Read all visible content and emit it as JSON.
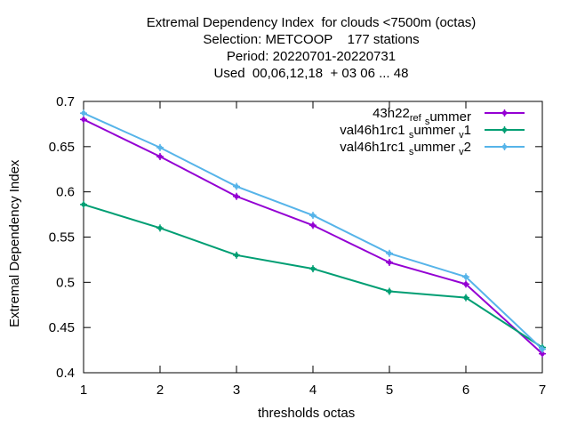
{
  "chart_data": {
    "type": "line",
    "title_lines": [
      "Extremal Dependency Index  for clouds <7500m (octas)",
      "Selection: METCOOP    177 stations",
      "Period: 20220701-20220731",
      "Used  00,06,12,18  + 03 06 ... 48"
    ],
    "xlabel": "thresholds octas",
    "ylabel": "Extremal Dependency Index",
    "x": [
      1,
      2,
      3,
      4,
      5,
      6,
      7
    ],
    "xlim": [
      1,
      7
    ],
    "ylim": [
      0.4,
      0.7
    ],
    "x_ticks": [
      "1",
      "2",
      "3",
      "4",
      "5",
      "6",
      "7"
    ],
    "y_ticks": [
      "0.4",
      "0.45",
      "0.5",
      "0.55",
      "0.6",
      "0.65",
      "0.7"
    ],
    "grid": false,
    "legend_position": "top-right",
    "series": [
      {
        "name": "43h22_ref_summer",
        "label_parts": [
          "43h22",
          "ref",
          "s",
          "ummer"
        ],
        "color": "#9400d3",
        "values": [
          0.68,
          0.639,
          0.595,
          0.563,
          0.522,
          0.498,
          0.421
        ]
      },
      {
        "name": "val46h1rc1_summer_v1",
        "label_parts": [
          "val46h1rc1",
          "s",
          "ummer",
          "v",
          "1"
        ],
        "color": "#009e73",
        "values": [
          0.586,
          0.56,
          0.53,
          0.515,
          0.49,
          0.483,
          0.428
        ]
      },
      {
        "name": "val46h1rc1_summer_v2",
        "label_parts": [
          "val46h1rc1",
          "s",
          "ummer",
          "v",
          "2"
        ],
        "color": "#56b4e9",
        "values": [
          0.687,
          0.649,
          0.606,
          0.574,
          0.532,
          0.506,
          0.426
        ]
      }
    ]
  }
}
